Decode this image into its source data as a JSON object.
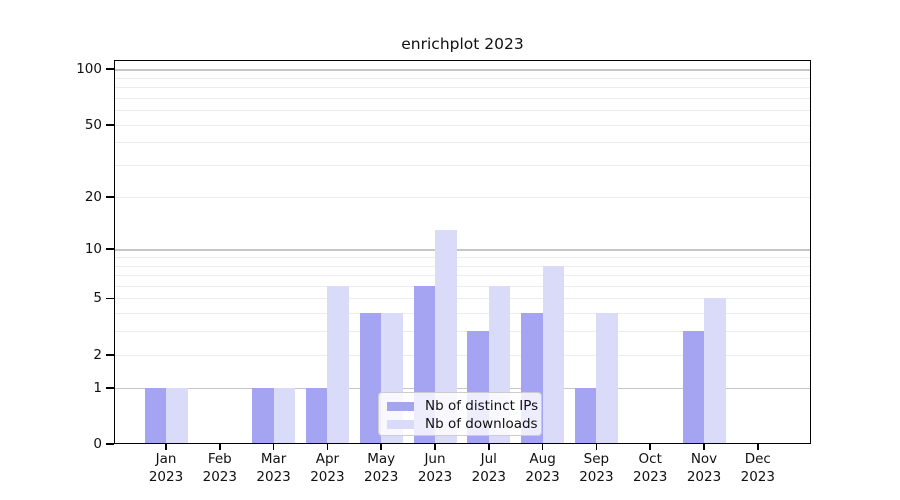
{
  "chart_data": {
    "type": "bar",
    "title": "enrichplot 2023",
    "categories": [
      "Jan 2023",
      "Feb 2023",
      "Mar 2023",
      "Apr 2023",
      "May 2023",
      "Jun 2023",
      "Jul 2023",
      "Aug 2023",
      "Sep 2023",
      "Oct 2023",
      "Nov 2023",
      "Dec 2023"
    ],
    "series": [
      {
        "name": "Nb of distinct IPs",
        "color": "#a4a4f2",
        "values": [
          1,
          0,
          1,
          1,
          4,
          6,
          3,
          4,
          1,
          0,
          3,
          0
        ]
      },
      {
        "name": "Nb of downloads",
        "color": "#dadaf9",
        "values": [
          1,
          0,
          1,
          6,
          4,
          13,
          6,
          8,
          4,
          0,
          5,
          0
        ]
      }
    ],
    "y_axis": {
      "scale": "log10(1+v)",
      "tick_values": [
        100,
        50,
        20,
        10,
        5,
        2,
        1,
        0
      ],
      "minor_gridline_values": [
        3,
        4,
        6,
        7,
        8,
        9,
        30,
        40,
        60,
        70,
        80,
        90
      ],
      "ylim": [
        0,
        112
      ]
    },
    "xlabel": "",
    "ylabel": "",
    "grid": true,
    "legend_position": "lower center"
  }
}
